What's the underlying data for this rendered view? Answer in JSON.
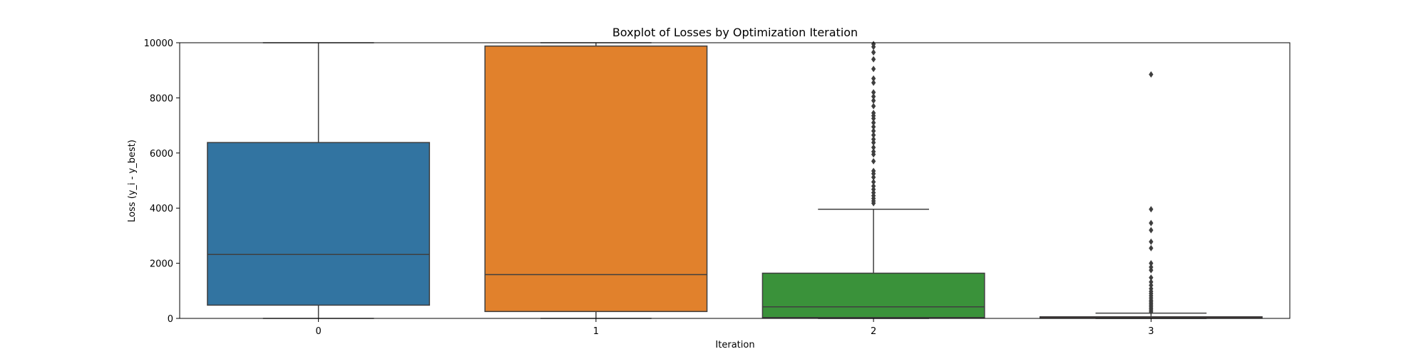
{
  "chart_data": {
    "type": "boxplot",
    "title": "Boxplot of Losses by Optimization Iteration",
    "xlabel": "Iteration",
    "ylabel": "Loss (y_i - y_best)",
    "categories": [
      "0",
      "1",
      "2",
      "3"
    ],
    "ylim": [
      0,
      10000
    ],
    "yticks": [
      0,
      2000,
      4000,
      6000,
      8000,
      10000
    ],
    "grid": false,
    "legend": "none",
    "boxes": [
      {
        "category": "0",
        "whisker_low": 0,
        "q1": 480,
        "median": 2320,
        "q3": 6380,
        "whisker_high": 10000,
        "color": "#3274a1",
        "outliers": []
      },
      {
        "category": "1",
        "whisker_low": 0,
        "q1": 250,
        "median": 1590,
        "q3": 9880,
        "whisker_high": 10000,
        "color": "#e1812c",
        "outliers": []
      },
      {
        "category": "2",
        "whisker_low": 0,
        "q1": 30,
        "median": 420,
        "q3": 1640,
        "whisker_high": 3960,
        "color": "#3a923a",
        "outliers": [
          4180,
          4260,
          4350,
          4450,
          4560,
          4680,
          4800,
          4950,
          5120,
          5250,
          5350,
          5700,
          5950,
          6050,
          6200,
          6380,
          6500,
          6650,
          6800,
          6950,
          7100,
          7250,
          7350,
          7450,
          7700,
          7900,
          8050,
          8200,
          8550,
          8700,
          9050,
          9400,
          9650,
          9850,
          9950
        ]
      },
      {
        "category": "3",
        "whisker_low": 0,
        "q1": 5,
        "median": 20,
        "q3": 60,
        "whisker_high": 190,
        "color": "#c03d3e",
        "outliers": [
          240,
          300,
          360,
          420,
          480,
          540,
          600,
          660,
          740,
          820,
          900,
          980,
          1080,
          1200,
          1320,
          1480,
          1750,
          1860,
          2000,
          2550,
          2780,
          3200,
          3460,
          3960,
          8850
        ]
      }
    ]
  }
}
